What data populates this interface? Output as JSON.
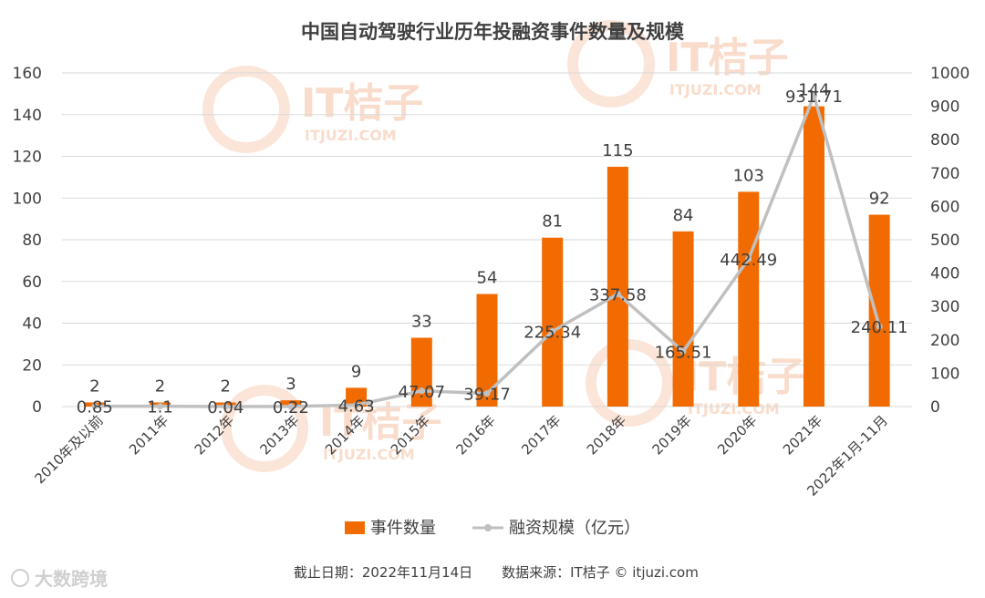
{
  "chart_data": {
    "type": "bar",
    "title": "中国自动驾驶行业历年投融资事件数量及规模",
    "categories": [
      "2010年及以前",
      "2011年",
      "2012年",
      "2013年",
      "2014年",
      "2015年",
      "2016年",
      "2017年",
      "2018年",
      "2019年",
      "2020年",
      "2021年",
      "2022年1月-11月"
    ],
    "series": [
      {
        "name": "事件数量",
        "type": "bar",
        "axis": "left",
        "color": "#f26b00",
        "values": [
          2,
          2,
          2,
          3,
          9,
          33,
          54,
          81,
          115,
          84,
          103,
          144,
          92
        ],
        "labels": [
          "2",
          "2",
          "2",
          "3",
          "9",
          "33",
          "54",
          "81",
          "115",
          "84",
          "103",
          "144",
          "92"
        ]
      },
      {
        "name": "融资规模（亿元）",
        "type": "line",
        "axis": "right",
        "color": "#c0c0c0",
        "values": [
          0.85,
          1.1,
          0.04,
          0.22,
          4.63,
          47.07,
          39.17,
          225.34,
          337.58,
          165.51,
          442.49,
          931.71,
          240.11
        ],
        "labels": [
          "0.85",
          "1.1",
          "0.04",
          "0.22",
          "4.63",
          "47.07",
          "39.17",
          "225.34",
          "337.58",
          "165.51",
          "442.49",
          "931.71",
          "240.11"
        ]
      }
    ],
    "y_left": {
      "min": 0,
      "max": 160,
      "step": 20,
      "ticks": [
        "0",
        "20",
        "40",
        "60",
        "80",
        "100",
        "120",
        "140",
        "160"
      ]
    },
    "y_right": {
      "min": 0,
      "max": 1000,
      "step": 100,
      "ticks": [
        "0",
        "100",
        "200",
        "300",
        "400",
        "500",
        "600",
        "700",
        "800",
        "900",
        "1000"
      ]
    },
    "grid": true,
    "legend_position": "bottom"
  },
  "footer": {
    "date": "截止日期：2022年11月14日",
    "source": "数据来源：IT桔子 © itjuzi.com"
  },
  "watermark": {
    "brand": "IT桔子",
    "url": "ITJUZI.COM"
  },
  "logo": {
    "text": "大数跨境"
  },
  "colors": {
    "bar": "#f26b00",
    "line": "#c0c0c0",
    "grid": "#d9d9d9",
    "text": "#404040"
  }
}
